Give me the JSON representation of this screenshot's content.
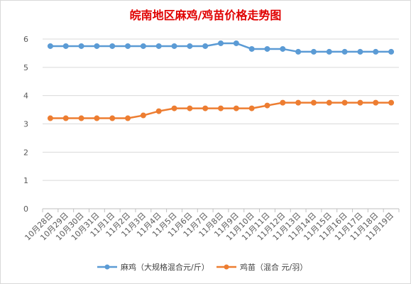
{
  "chart_data": {
    "type": "line",
    "title": "皖南地区麻鸡/鸡苗价格走势图",
    "xlabel": "",
    "ylabel": "",
    "ylim": [
      0,
      6
    ],
    "yticks": [
      "0",
      "1",
      "2",
      "3",
      "4",
      "5",
      "6"
    ],
    "grid": true,
    "legend_position": "bottom",
    "categories": [
      "10月28日",
      "10月29日",
      "10月30日",
      "10月31日",
      "11月1日",
      "11月2日",
      "11月3日",
      "11月4日",
      "11月5日",
      "11月6日",
      "11月7日",
      "11月8日",
      "11月9日",
      "11月10日",
      "11月11日",
      "11月12日",
      "11月13日",
      "11月14日",
      "11月15日",
      "11月16日",
      "11月17日",
      "11月18日",
      "11月19日"
    ],
    "series": [
      {
        "name": "麻鸡（大规格混合元/斤）",
        "color": "#5b9bd5",
        "values": [
          5.75,
          5.75,
          5.75,
          5.75,
          5.75,
          5.75,
          5.75,
          5.75,
          5.75,
          5.75,
          5.75,
          5.85,
          5.85,
          5.65,
          5.65,
          5.65,
          5.55,
          5.55,
          5.55,
          5.55,
          5.55,
          5.55,
          5.55
        ]
      },
      {
        "name": "鸡苗（混合 元/羽）",
        "color": "#ed7d31",
        "values": [
          3.2,
          3.2,
          3.2,
          3.2,
          3.2,
          3.2,
          3.3,
          3.45,
          3.55,
          3.55,
          3.55,
          3.55,
          3.55,
          3.55,
          3.65,
          3.75,
          3.75,
          3.75,
          3.75,
          3.75,
          3.75,
          3.75,
          3.75
        ]
      }
    ]
  }
}
